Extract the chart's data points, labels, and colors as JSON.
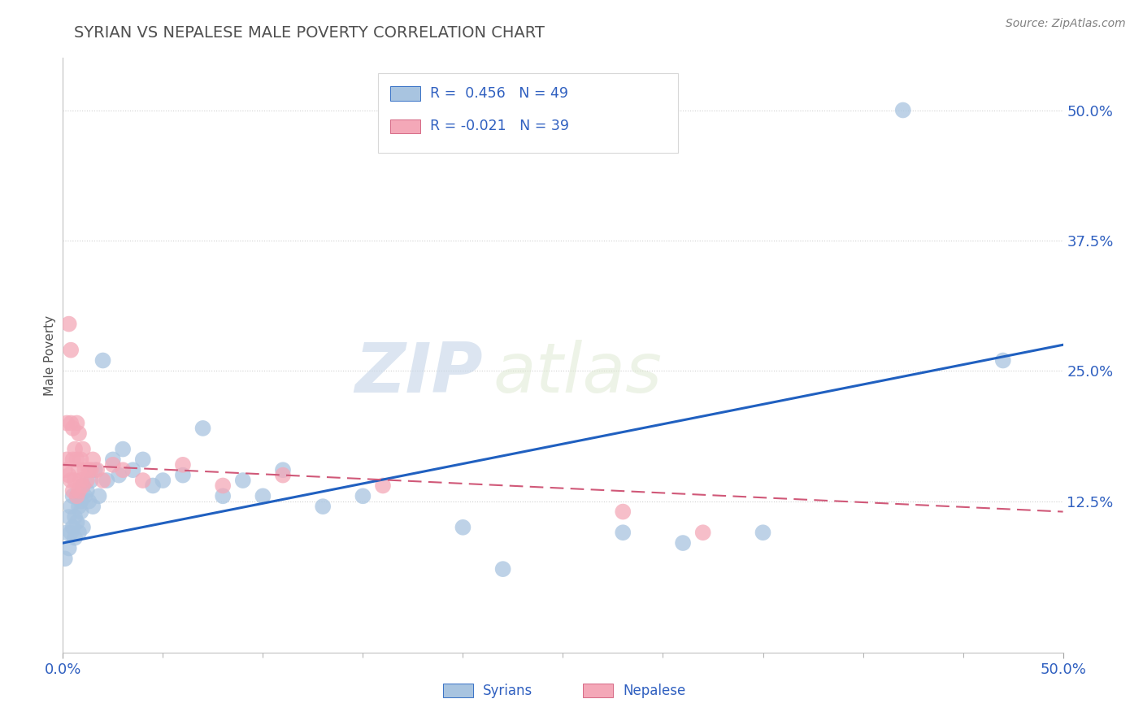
{
  "title": "SYRIAN VS NEPALESE MALE POVERTY CORRELATION CHART",
  "source": "Source: ZipAtlas.com",
  "ylabel": "Male Poverty",
  "watermark_zip": "ZIP",
  "watermark_atlas": "atlas",
  "xlim": [
    0.0,
    0.5
  ],
  "ylim": [
    -0.02,
    0.55
  ],
  "yticks": [
    0.125,
    0.25,
    0.375,
    0.5
  ],
  "ytick_labels": [
    "12.5%",
    "25.0%",
    "37.5%",
    "50.0%"
  ],
  "xticks": [
    0.0,
    0.5
  ],
  "xtick_labels": [
    "0.0%",
    "50.0%"
  ],
  "gridline_y": [
    0.125,
    0.25,
    0.375,
    0.5
  ],
  "legend_text1": "R =  0.456   N = 49",
  "legend_text2": "R = -0.021   N = 39",
  "syrian_color": "#a8c4e0",
  "nepalese_color": "#f4a8b8",
  "syrian_line_color": "#2060c0",
  "nepalese_line_color": "#d05878",
  "legend_text_color": "#3060c0",
  "title_color": "#505050",
  "source_color": "#808080",
  "background_color": "#ffffff",
  "grid_color": "#d0d0d0",
  "axis_color": "#c0c0c0",
  "tick_color": "#a0a0a0",
  "syrian_x": [
    0.001,
    0.002,
    0.003,
    0.003,
    0.004,
    0.004,
    0.005,
    0.005,
    0.006,
    0.006,
    0.007,
    0.007,
    0.008,
    0.008,
    0.009,
    0.009,
    0.01,
    0.01,
    0.011,
    0.012,
    0.013,
    0.014,
    0.015,
    0.016,
    0.018,
    0.02,
    0.022,
    0.025,
    0.028,
    0.03,
    0.035,
    0.04,
    0.045,
    0.05,
    0.06,
    0.07,
    0.08,
    0.09,
    0.1,
    0.11,
    0.13,
    0.15,
    0.2,
    0.22,
    0.28,
    0.31,
    0.35,
    0.42,
    0.47
  ],
  "syrian_y": [
    0.07,
    0.095,
    0.08,
    0.11,
    0.095,
    0.12,
    0.1,
    0.13,
    0.11,
    0.09,
    0.105,
    0.13,
    0.095,
    0.12,
    0.125,
    0.115,
    0.14,
    0.1,
    0.13,
    0.135,
    0.125,
    0.145,
    0.12,
    0.155,
    0.13,
    0.26,
    0.145,
    0.165,
    0.15,
    0.175,
    0.155,
    0.165,
    0.14,
    0.145,
    0.15,
    0.195,
    0.13,
    0.145,
    0.13,
    0.155,
    0.12,
    0.13,
    0.1,
    0.06,
    0.095,
    0.085,
    0.095,
    0.5,
    0.26
  ],
  "nepalese_x": [
    0.001,
    0.002,
    0.002,
    0.003,
    0.003,
    0.004,
    0.004,
    0.004,
    0.005,
    0.005,
    0.005,
    0.006,
    0.006,
    0.007,
    0.007,
    0.007,
    0.008,
    0.008,
    0.008,
    0.009,
    0.009,
    0.01,
    0.01,
    0.011,
    0.012,
    0.013,
    0.014,
    0.015,
    0.017,
    0.02,
    0.025,
    0.03,
    0.04,
    0.06,
    0.08,
    0.11,
    0.16,
    0.28,
    0.32
  ],
  "nepalese_y": [
    0.155,
    0.165,
    0.2,
    0.15,
    0.295,
    0.145,
    0.2,
    0.27,
    0.135,
    0.165,
    0.195,
    0.145,
    0.175,
    0.13,
    0.165,
    0.2,
    0.135,
    0.155,
    0.19,
    0.145,
    0.165,
    0.14,
    0.175,
    0.155,
    0.145,
    0.155,
    0.155,
    0.165,
    0.155,
    0.145,
    0.16,
    0.155,
    0.145,
    0.16,
    0.14,
    0.15,
    0.14,
    0.115,
    0.095
  ]
}
